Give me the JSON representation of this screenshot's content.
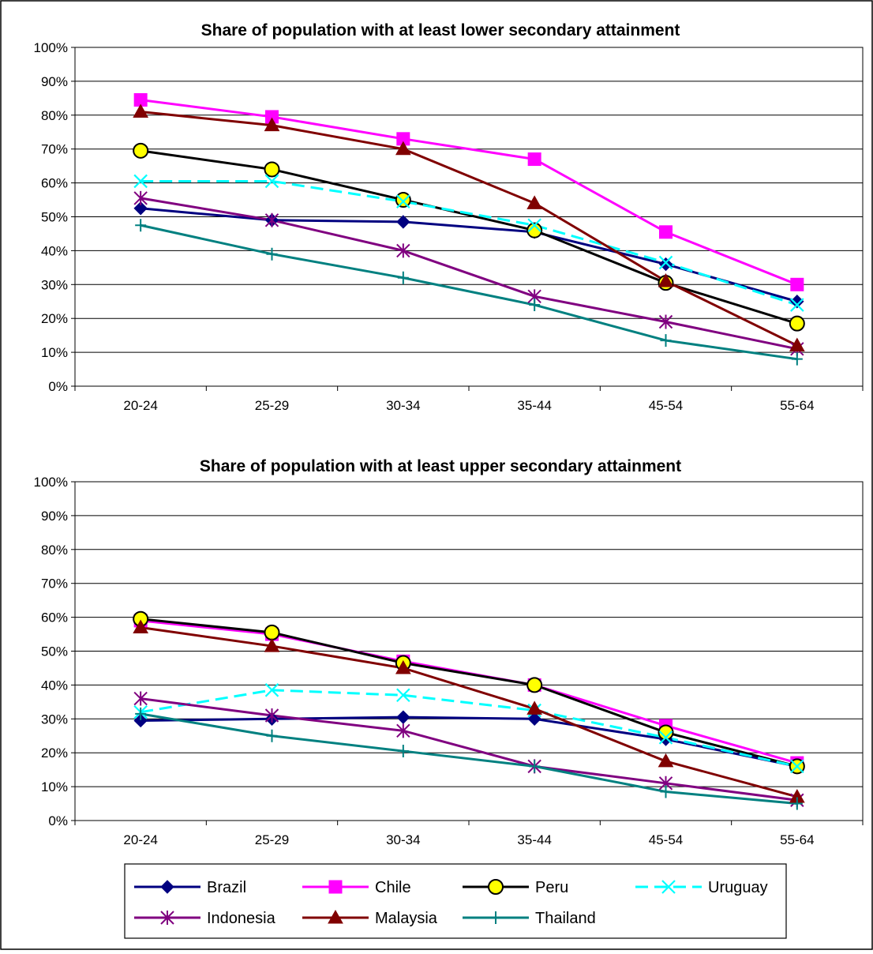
{
  "colors": {
    "Brazil": "#000080",
    "Chile": "#ff00ff",
    "Peru": "#000000",
    "Uruguay": "#00ffff",
    "Indonesia": "#800080",
    "Malaysia": "#800000",
    "Thailand": "#008080",
    "peru_fill": "#ffff00",
    "grid": "#000000",
    "frame": "#000000"
  },
  "legend": [
    {
      "name": "Brazil",
      "marker": "diamond"
    },
    {
      "name": "Chile",
      "marker": "square"
    },
    {
      "name": "Peru",
      "marker": "circle"
    },
    {
      "name": "Uruguay",
      "marker": "x",
      "dashed": true
    },
    {
      "name": "Indonesia",
      "marker": "star"
    },
    {
      "name": "Malaysia",
      "marker": "triangle"
    },
    {
      "name": "Thailand",
      "marker": "plus"
    }
  ],
  "chart_data": [
    {
      "type": "line",
      "title": "Share of population with at least lower secondary attainment",
      "categories": [
        "20-24",
        "25-29",
        "30-34",
        "35-44",
        "45-54",
        "55-64"
      ],
      "ylim": [
        0,
        100
      ],
      "yticks": [
        "0%",
        "10%",
        "20%",
        "30%",
        "40%",
        "50%",
        "60%",
        "70%",
        "80%",
        "90%",
        "100%"
      ],
      "grid": true,
      "series": [
        {
          "name": "Brazil",
          "values": [
            52.5,
            49,
            48.5,
            45.5,
            36,
            25
          ]
        },
        {
          "name": "Chile",
          "values": [
            84.5,
            79.5,
            73,
            67,
            45.5,
            30
          ]
        },
        {
          "name": "Peru",
          "values": [
            69.5,
            64,
            55,
            46,
            30.5,
            18.5
          ]
        },
        {
          "name": "Uruguay",
          "values": [
            60.5,
            60.5,
            54.5,
            47.5,
            36.5,
            24
          ]
        },
        {
          "name": "Indonesia",
          "values": [
            55.5,
            49,
            40,
            26.5,
            19,
            11
          ]
        },
        {
          "name": "Malaysia",
          "values": [
            81,
            77,
            70,
            54,
            31,
            12
          ]
        },
        {
          "name": "Thailand",
          "values": [
            47.5,
            39,
            32,
            24,
            13.5,
            8
          ]
        }
      ]
    },
    {
      "type": "line",
      "title": "Share of population with at least upper secondary attainment",
      "categories": [
        "20-24",
        "25-29",
        "30-34",
        "35-44",
        "45-54",
        "55-64"
      ],
      "ylim": [
        0,
        100
      ],
      "yticks": [
        "0%",
        "10%",
        "20%",
        "30%",
        "40%",
        "50%",
        "60%",
        "70%",
        "80%",
        "90%",
        "100%"
      ],
      "grid": true,
      "series": [
        {
          "name": "Brazil",
          "values": [
            29.5,
            30,
            30.5,
            30,
            24,
            16
          ]
        },
        {
          "name": "Chile",
          "values": [
            59,
            55,
            47,
            40,
            28,
            17
          ]
        },
        {
          "name": "Peru",
          "values": [
            59.5,
            55.5,
            46.5,
            40,
            26,
            16
          ]
        },
        {
          "name": "Uruguay",
          "values": [
            32,
            38.5,
            37,
            32.5,
            24.5,
            16
          ]
        },
        {
          "name": "Indonesia",
          "values": [
            36,
            31,
            26.5,
            16,
            11,
            6
          ]
        },
        {
          "name": "Malaysia",
          "values": [
            57,
            51.5,
            45,
            33,
            17.5,
            7
          ]
        },
        {
          "name": "Thailand",
          "values": [
            31.5,
            25,
            20.5,
            16,
            8.5,
            5
          ]
        }
      ]
    }
  ]
}
